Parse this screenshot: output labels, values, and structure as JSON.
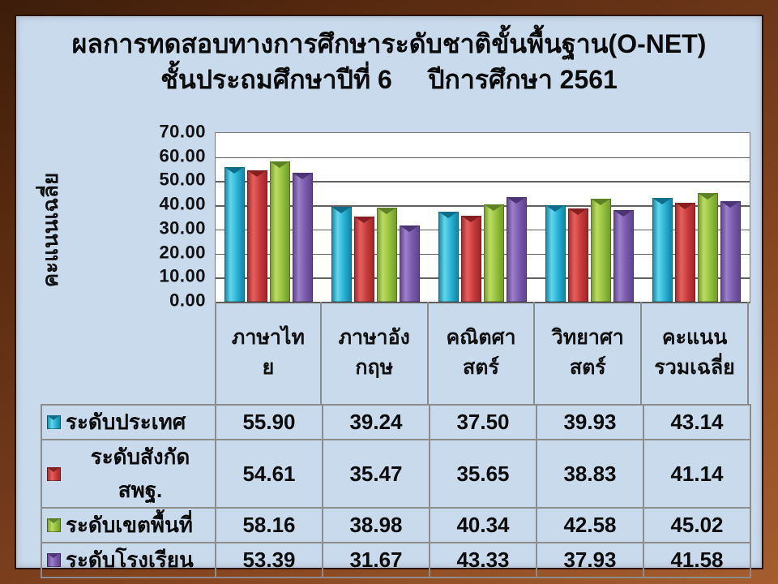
{
  "title": {
    "line1": "ผลการทดสอบทางการศึกษาระดับชาติขั้นพื้นฐาน(O-NET)",
    "line2": "ชั้นประถมศึกษาปีที่ 6     ปีการศึกษา 2561"
  },
  "chart_data": {
    "type": "bar",
    "title": "ผลการทดสอบทางการศึกษาระดับชาติขั้นพื้นฐาน(O-NET) ชั้นประถมศึกษาปีที่ 6 ปีการศึกษา 2561",
    "xlabel": "",
    "ylabel": "คะแนนเฉลี่ย",
    "ylim": [
      0,
      70
    ],
    "ytick_step": 10,
    "yticks": [
      "70.00",
      "60.00",
      "50.00",
      "40.00",
      "30.00",
      "20.00",
      "10.00",
      "0.00"
    ],
    "grid": true,
    "legend_position": "table-left-column",
    "categories": [
      "ภาษาไทย",
      "ภาษาอังกฤษ",
      "คณิตศาสตร์",
      "วิทยาศาสตร์",
      "คะแนนรวมเฉลี่ย"
    ],
    "category_display_lines": [
      [
        "ภาษาไท",
        "ย"
      ],
      [
        "ภาษาอัง",
        "กฤษ"
      ],
      [
        "คณิตศา",
        "สตร์"
      ],
      [
        "วิทยาศา",
        "สตร์"
      ],
      [
        "คะแนน",
        "รวมเฉลี่ย"
      ]
    ],
    "series": [
      {
        "name": "ระดับประเทศ",
        "values": [
          55.9,
          39.24,
          37.5,
          39.93,
          43.14
        ],
        "color": "#29b2d5",
        "light": "#62d6ec",
        "dark": "#13809e",
        "notch": "#0e6d88"
      },
      {
        "name": "ระดับสังกัด สพฐ.",
        "values": [
          54.61,
          35.47,
          35.65,
          38.83,
          41.14
        ],
        "color": "#c83b3c",
        "light": "#e6605f",
        "dark": "#99272a",
        "notch": "#871f22"
      },
      {
        "name": "ระดับเขตพื้นที่",
        "values": [
          58.16,
          38.98,
          40.34,
          42.58,
          45.02
        ],
        "color": "#94c13e",
        "light": "#bcdb62",
        "dark": "#6e962c",
        "notch": "#5d8124"
      },
      {
        "name": "ระดับโรงเรียน",
        "values": [
          53.39,
          31.67,
          43.33,
          37.93,
          41.58
        ],
        "color": "#7a5aad",
        "light": "#9c7fca",
        "dark": "#5b4188",
        "notch": "#4c3575"
      }
    ]
  },
  "colors": {
    "frame_wood": "#6e371a",
    "canvas_background": "#cadaed",
    "plot_background": "#ffffff",
    "gridline": "#616161",
    "table_border": "#8c8c8c",
    "text": "#0b0b0b"
  }
}
